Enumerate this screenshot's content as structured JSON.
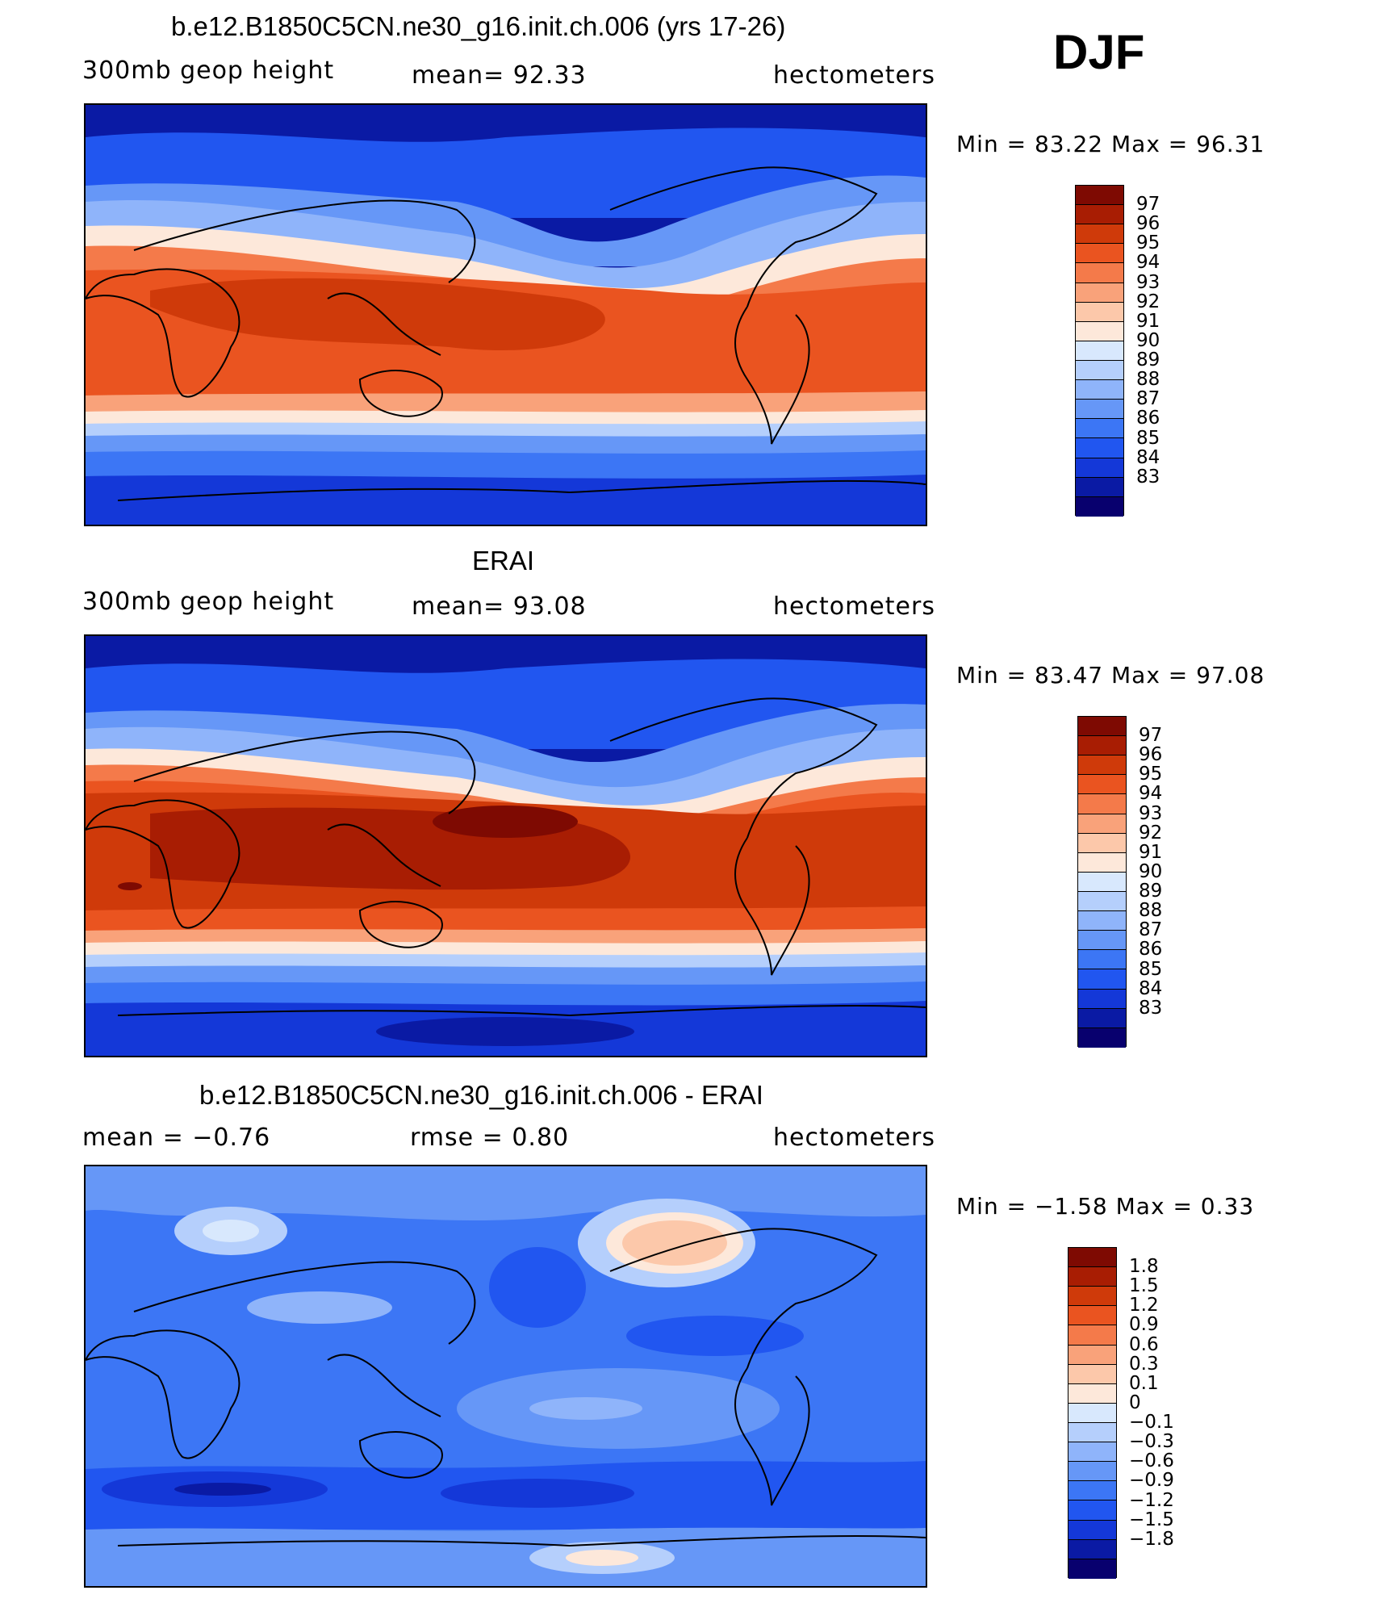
{
  "season": "DJF",
  "panels": [
    {
      "title": "b.e12.B1850C5CN.ne30_g16.init.ch.006 (yrs 17-26)",
      "left_label": "300mb  geop  height",
      "center_label": "mean=   92.33",
      "units": "hectometers",
      "minmax": "Min  =    83.22  Max  =    96.31",
      "palette": [
        "#08006e",
        "#0a1aa4",
        "#1438d8",
        "#2156f0",
        "#3c76f5",
        "#6697f7",
        "#8fb4fa",
        "#b5cffc",
        "#d8e8fd",
        "#fde8da",
        "#fcc8aa",
        "#f9a27a",
        "#f47a4a",
        "#ea5420",
        "#cf3a0a",
        "#a81d03",
        "#7e0a02"
      ],
      "levels": [
        "97",
        "96",
        "95",
        "94",
        "93",
        "92",
        "91",
        "90",
        "89",
        "88",
        "87",
        "86",
        "85",
        "84",
        "83"
      ],
      "field_colors": {
        "pole_north": "#0a1aa4",
        "high_lat": "#2156f0",
        "mid_lat": "#8fb4fa",
        "subtrop": "#f47a4a",
        "tropics": "#ea5420",
        "core": "#cf3a0a",
        "pole_south": "#1438d8"
      }
    },
    {
      "title": "ERAI",
      "left_label": "300mb  geop  height",
      "center_label": "mean=   93.08",
      "units": "hectometers",
      "minmax": "Min  =    83.47  Max  =    97.08",
      "palette": [
        "#08006e",
        "#0a1aa4",
        "#1438d8",
        "#2156f0",
        "#3c76f5",
        "#6697f7",
        "#8fb4fa",
        "#b5cffc",
        "#d8e8fd",
        "#fde8da",
        "#fcc8aa",
        "#f9a27a",
        "#f47a4a",
        "#ea5420",
        "#cf3a0a",
        "#a81d03",
        "#7e0a02"
      ],
      "levels": [
        "97",
        "96",
        "95",
        "94",
        "93",
        "92",
        "91",
        "90",
        "89",
        "88",
        "87",
        "86",
        "85",
        "84",
        "83"
      ],
      "field_colors": {
        "pole_north": "#0a1aa4",
        "high_lat": "#2156f0",
        "mid_lat": "#8fb4fa",
        "subtrop": "#ea5420",
        "tropics": "#cf3a0a",
        "core": "#a81d03",
        "pole_south": "#1438d8"
      }
    },
    {
      "title": "b.e12.B1850C5CN.ne30_g16.init.ch.006 - ERAI",
      "left_label": "mean  =    −0.76",
      "center_label": "rmse  =     0.80",
      "units": "hectometers",
      "minmax": "Min  =   −1.58  Max  =     0.33",
      "palette": [
        "#08006e",
        "#0a1aa4",
        "#1438d8",
        "#2156f0",
        "#3c76f5",
        "#6697f7",
        "#8fb4fa",
        "#b5cffc",
        "#d8e8fd",
        "#fde8da",
        "#fcc8aa",
        "#f9a27a",
        "#f47a4a",
        "#ea5420",
        "#cf3a0a",
        "#a81d03",
        "#7e0a02"
      ],
      "levels": [
        "1.8",
        "1.5",
        "1.2",
        "0.9",
        "0.6",
        "0.3",
        "0.1",
        "0",
        "−0.1",
        "−0.3",
        "−0.6",
        "−0.9",
        "−1.2",
        "−1.5",
        "−1.8"
      ],
      "field_colors": {
        "base": "#3c76f5",
        "light": "#6697f7",
        "lighter": "#8fb4fa",
        "dark": "#2156f0",
        "darker": "#1438d8",
        "warm": "#fcc8aa",
        "pale": "#b5cffc"
      }
    }
  ]
}
